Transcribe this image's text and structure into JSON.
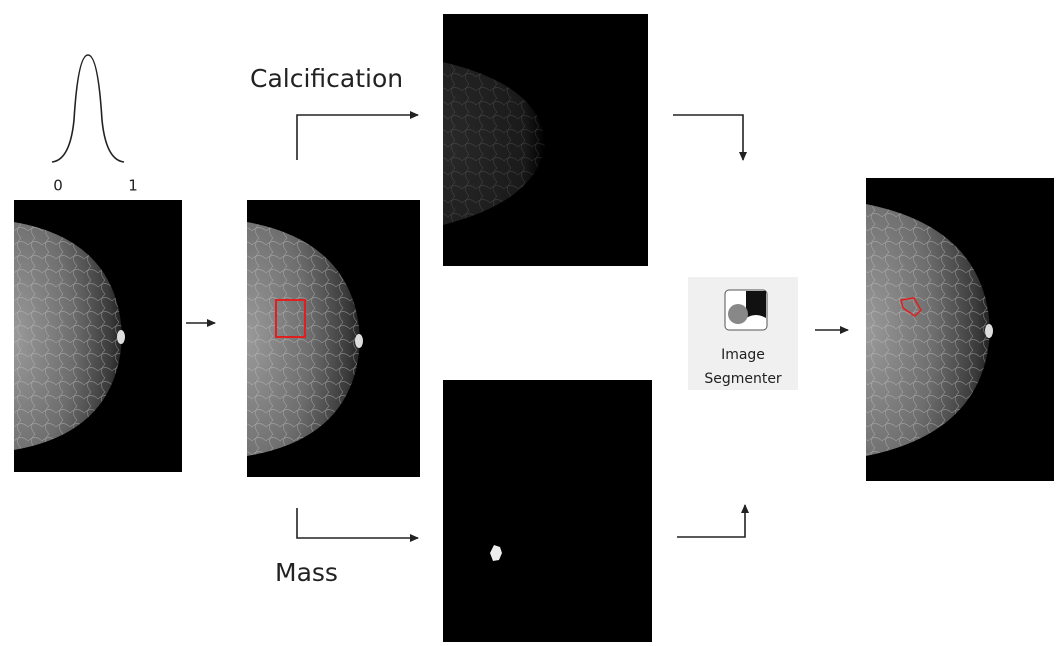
{
  "gaussian": {
    "axis_start": "0",
    "axis_end": "1"
  },
  "branches": {
    "top": "Calcification",
    "bottom": "Mass"
  },
  "tool": {
    "label_lines": [
      "Image",
      "Segmenter"
    ]
  }
}
